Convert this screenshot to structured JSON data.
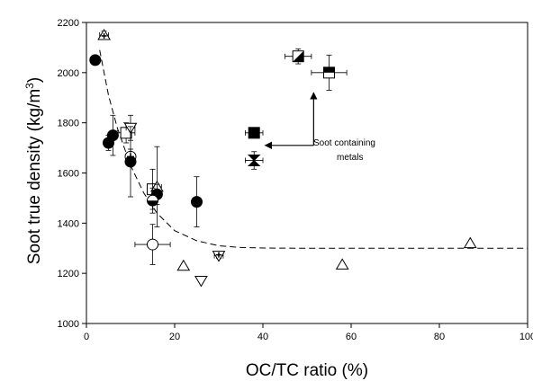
{
  "chart_data": {
    "type": "scatter",
    "xlabel": "OC/TC ratio (%)",
    "ylabel_main": "Soot true density (kg/m",
    "ylabel_sup": "3",
    "ylabel_close": ")",
    "xlim": [
      0,
      100
    ],
    "ylim": [
      1000,
      2200
    ],
    "xticks": [
      0,
      20,
      40,
      60,
      80,
      100
    ],
    "yticks": [
      1000,
      1200,
      1400,
      1600,
      1800,
      2000,
      2200
    ],
    "grid": false,
    "legend": "none",
    "annotation": {
      "lines": [
        "Soot containing",
        "metals"
      ]
    },
    "fit_curve": {
      "style": "dashed",
      "x": [
        3,
        5,
        7,
        10,
        13,
        16,
        20,
        25,
        30,
        35,
        40,
        50,
        60,
        70,
        80,
        90,
        100
      ],
      "y": [
        2090,
        1910,
        1780,
        1630,
        1520,
        1440,
        1370,
        1330,
        1310,
        1303,
        1301,
        1300,
        1300,
        1300,
        1300,
        1300,
        1300
      ]
    },
    "points": [
      {
        "marker": "circle-filled",
        "x": 2,
        "y": 2050
      },
      {
        "marker": "triangle-up-cross",
        "x": 4,
        "y": 2150,
        "xerr": 1,
        "yerr": 15
      },
      {
        "marker": "circle-filled",
        "x": 5,
        "y": 1720,
        "xerr": 1,
        "yerr": 30
      },
      {
        "marker": "circle-filled",
        "x": 6,
        "y": 1750,
        "xerr": 1,
        "yerr": 80
      },
      {
        "marker": "square-open",
        "x": 9,
        "y": 1760,
        "xerr": 2,
        "yerr": 40
      },
      {
        "marker": "triangle-down-open",
        "x": 10,
        "y": 1780,
        "xerr": 1,
        "yerr": 50
      },
      {
        "marker": "circle-plus",
        "x": 10,
        "y": 1665,
        "xerr": 1,
        "yerr": 30
      },
      {
        "marker": "circle-filled",
        "x": 10,
        "y": 1645,
        "xerr": 1,
        "yerr": 140
      },
      {
        "marker": "square-open",
        "x": 15,
        "y": 1535,
        "xerr": 1,
        "yerr": 80
      },
      {
        "marker": "triangle-up-open",
        "x": 16,
        "y": 1545,
        "xerr": 1,
        "yerr": 160
      },
      {
        "marker": "circle-filled",
        "x": 16,
        "y": 1515,
        "xerr": 1,
        "yerr": 40
      },
      {
        "marker": "circle-half",
        "x": 15,
        "y": 1490,
        "xerr": 1,
        "yerr": 50
      },
      {
        "marker": "circle-open",
        "x": 15,
        "y": 1315,
        "xerr": 4,
        "yerr": 80
      },
      {
        "marker": "circle-filled",
        "x": 25,
        "y": 1485,
        "xerr": 0,
        "yerr": 100
      },
      {
        "marker": "triangle-up-open",
        "x": 22,
        "y": 1230
      },
      {
        "marker": "triangle-down-open",
        "x": 26,
        "y": 1170
      },
      {
        "marker": "triangle-down-cross",
        "x": 30,
        "y": 1270,
        "xerr": 1,
        "yerr": 10
      },
      {
        "marker": "square-filled",
        "x": 38,
        "y": 1760,
        "xerr": 2,
        "yerr": 15
      },
      {
        "marker": "bowtie",
        "x": 38,
        "y": 1650,
        "xerr": 2,
        "yerr": 35
      },
      {
        "marker": "square-half",
        "x": 48,
        "y": 2065,
        "xerr": 3,
        "yerr": 30
      },
      {
        "marker": "square-filled-open",
        "x": 55,
        "y": 2000,
        "xerr": 4,
        "yerr": 70
      },
      {
        "marker": "triangle-up-open",
        "x": 58,
        "y": 1235
      },
      {
        "marker": "triangle-up-open",
        "x": 87,
        "y": 1320
      }
    ]
  }
}
